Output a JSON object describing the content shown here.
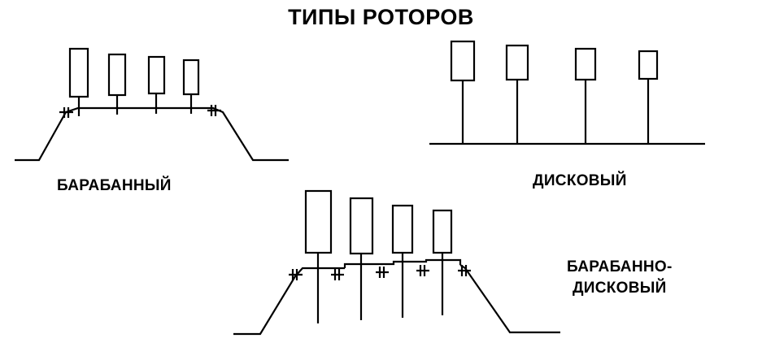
{
  "title": "ТИПЫ РОТОРОВ",
  "rotors": {
    "drum": {
      "label": "БАРАБАННЫЙ"
    },
    "disc": {
      "label": "ДИСКОВЫЙ"
    },
    "drum_disc": {
      "label_line1": "БАРАБАННО-",
      "label_line2": "ДИСКОВЫЙ"
    }
  },
  "colors": {
    "ink": "#000000",
    "background": "#ffffff"
  }
}
